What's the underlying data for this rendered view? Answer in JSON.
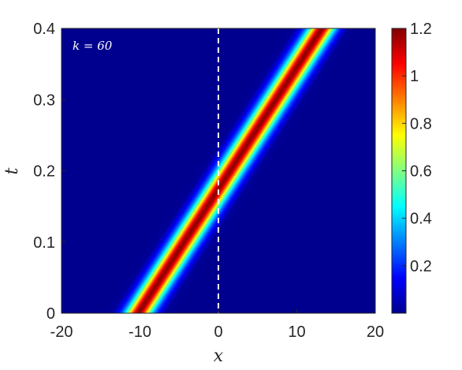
{
  "chart_data": {
    "type": "heatmap",
    "title": "",
    "xlabel": "x",
    "ylabel": "t",
    "xlim": [
      -20,
      20
    ],
    "ylim": [
      0,
      0.4
    ],
    "x_ticks": [
      -20,
      -10,
      0,
      10,
      20
    ],
    "x_tick_labels": [
      "-20",
      "-10",
      "0",
      "10",
      "20"
    ],
    "y_ticks": [
      0,
      0.1,
      0.2,
      0.3,
      0.4
    ],
    "y_tick_labels": [
      "0",
      "0.1",
      "0.2",
      "0.3",
      "0.4"
    ],
    "colormap": "jet",
    "clim": [
      0,
      1.2
    ],
    "colorbar_ticks": [
      0.2,
      0.4,
      0.6,
      0.8,
      1,
      1.2
    ],
    "colorbar_tick_labels": [
      "0.2",
      "0.4",
      "0.6",
      "0.8",
      "1",
      "1.2"
    ],
    "annotation": "k = 60",
    "vertical_reference_line": {
      "x": 0,
      "style": "dashed",
      "color": "#ffffff"
    },
    "soliton": {
      "peak_amplitude": 1.2,
      "center_at_t0": -10.2,
      "center_at_t04": 13.2,
      "half_width": 1.6
    },
    "grid": false
  }
}
